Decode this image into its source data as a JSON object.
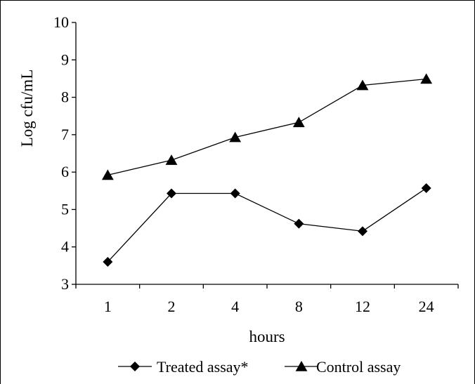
{
  "chart_data": {
    "type": "line",
    "title": "",
    "xlabel": "hours",
    "ylabel": "Log cfu/mL",
    "categories": [
      "1",
      "2",
      "4",
      "8",
      "12",
      "24"
    ],
    "ylim": [
      3,
      10
    ],
    "yticks": [
      "3",
      "4",
      "5",
      "6",
      "7",
      "8",
      "9",
      "10"
    ],
    "grid": false,
    "legend_position": "bottom",
    "series": [
      {
        "name": "Treated assay*",
        "marker": "diamond",
        "values": [
          3.6,
          5.43,
          5.43,
          4.62,
          4.42,
          5.57
        ]
      },
      {
        "name": "Control assay",
        "marker": "triangle",
        "values": [
          5.92,
          6.32,
          6.93,
          7.33,
          8.32,
          8.49
        ]
      }
    ],
    "colors": {
      "line": "#000000",
      "marker": "#000000",
      "frame": "#000000"
    }
  }
}
